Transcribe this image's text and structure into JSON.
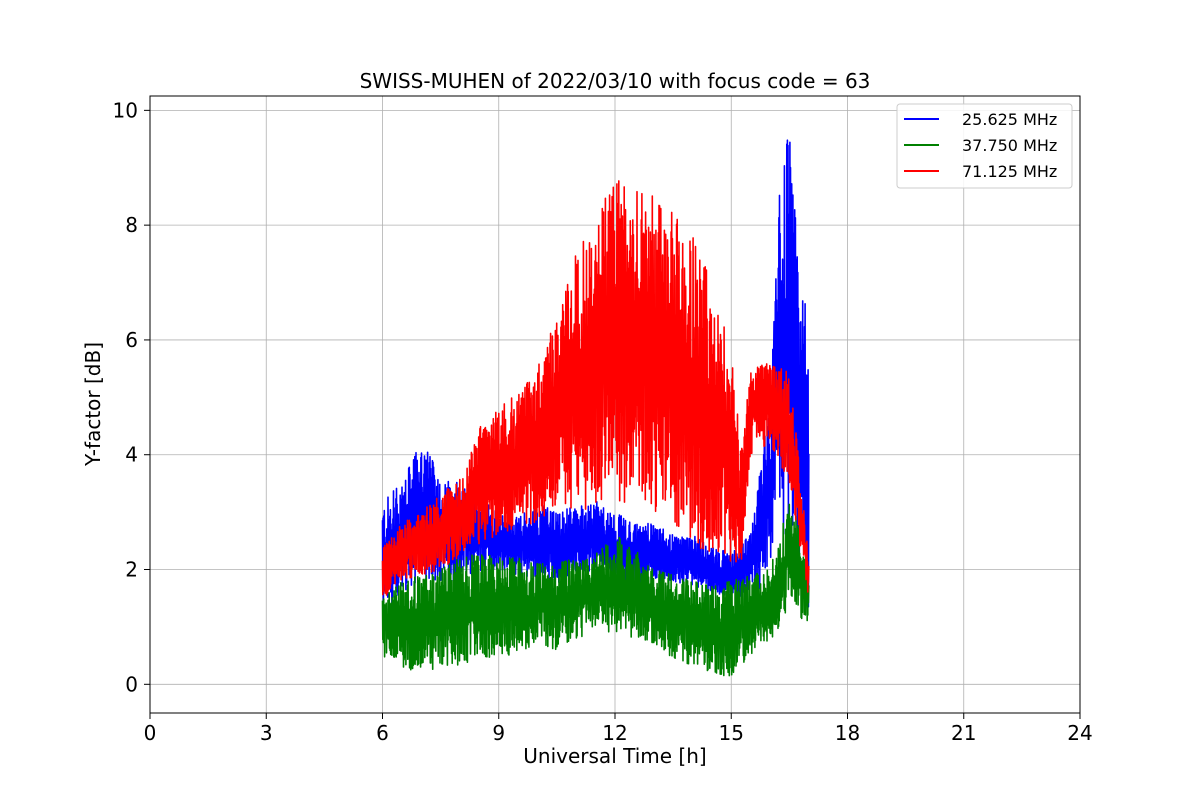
{
  "chart_data": {
    "type": "line",
    "title": "SWISS-MUHEN of 2022/03/10 with focus code = 63",
    "xlabel": "Universal Time [h]",
    "ylabel": "Y-factor [dB]",
    "xlim": [
      0,
      24
    ],
    "ylim": [
      -0.5,
      10.25
    ],
    "x_ticks": [
      0,
      3,
      6,
      9,
      12,
      15,
      18,
      21,
      24
    ],
    "y_ticks": [
      0,
      2,
      4,
      6,
      8,
      10
    ],
    "grid": true,
    "legend_position": "top-right",
    "series": [
      {
        "name": "25.625 MHz",
        "color": "#0000ff",
        "x": [
          6.0,
          6.5,
          7.0,
          7.5,
          8.0,
          8.5,
          9.0,
          9.5,
          10.0,
          10.5,
          11.0,
          11.5,
          12.0,
          12.5,
          13.0,
          13.5,
          14.0,
          14.5,
          15.0,
          15.5,
          16.0,
          16.25,
          16.5,
          16.75,
          17.0
        ],
        "low": [
          1.0,
          1.6,
          1.8,
          1.8,
          1.7,
          1.9,
          2.0,
          1.9,
          1.8,
          1.7,
          1.9,
          2.0,
          1.8,
          1.7,
          1.8,
          1.8,
          1.7,
          1.6,
          1.5,
          1.5,
          1.8,
          2.4,
          2.8,
          1.8,
          1.2
        ],
        "high": [
          3.2,
          3.5,
          4.3,
          3.6,
          3.5,
          3.4,
          3.0,
          2.9,
          3.2,
          3.0,
          3.1,
          3.2,
          3.0,
          2.8,
          2.8,
          2.6,
          2.6,
          2.4,
          2.3,
          2.6,
          5.0,
          8.6,
          9.7,
          7.3,
          6.3
        ]
      },
      {
        "name": "37.750 MHz",
        "color": "#008000",
        "x": [
          6.0,
          6.5,
          7.0,
          7.5,
          8.0,
          8.5,
          9.0,
          9.5,
          10.0,
          10.5,
          11.0,
          11.5,
          12.0,
          12.5,
          13.0,
          13.5,
          14.0,
          14.5,
          15.0,
          15.5,
          16.0,
          16.25,
          16.5,
          16.75,
          17.0
        ],
        "low": [
          0.5,
          0.3,
          0.2,
          0.3,
          0.3,
          0.4,
          0.5,
          0.5,
          0.7,
          0.6,
          0.8,
          0.9,
          0.9,
          0.8,
          0.7,
          0.4,
          0.3,
          0.2,
          0.1,
          0.5,
          0.7,
          1.0,
          1.4,
          1.2,
          1.0
        ],
        "high": [
          1.6,
          1.8,
          1.9,
          2.0,
          2.2,
          2.3,
          2.2,
          2.2,
          2.1,
          2.1,
          2.2,
          2.3,
          2.6,
          2.4,
          2.0,
          1.9,
          1.8,
          1.7,
          1.8,
          1.9,
          2.0,
          2.6,
          3.2,
          2.8,
          2.0
        ]
      },
      {
        "name": "71.125 MHz",
        "color": "#ff0000",
        "x": [
          6.0,
          6.5,
          7.0,
          7.5,
          8.0,
          8.5,
          9.0,
          9.5,
          10.0,
          10.5,
          11.0,
          11.5,
          12.0,
          12.5,
          13.0,
          13.5,
          14.0,
          14.5,
          15.0,
          15.25,
          15.5,
          16.0,
          16.5,
          17.0
        ],
        "low": [
          1.4,
          1.8,
          1.9,
          2.0,
          2.2,
          2.4,
          2.6,
          2.7,
          2.8,
          2.9,
          3.0,
          3.0,
          3.2,
          3.0,
          2.9,
          2.7,
          2.4,
          2.3,
          2.1,
          2.0,
          4.0,
          4.2,
          3.5,
          1.5
        ],
        "high": [
          2.4,
          2.8,
          3.0,
          3.3,
          3.6,
          4.5,
          4.8,
          5.1,
          5.5,
          6.5,
          7.5,
          8.3,
          9.0,
          8.6,
          8.5,
          8.2,
          7.8,
          7.0,
          6.0,
          4.0,
          5.5,
          5.6,
          5.5,
          2.2
        ]
      }
    ]
  }
}
